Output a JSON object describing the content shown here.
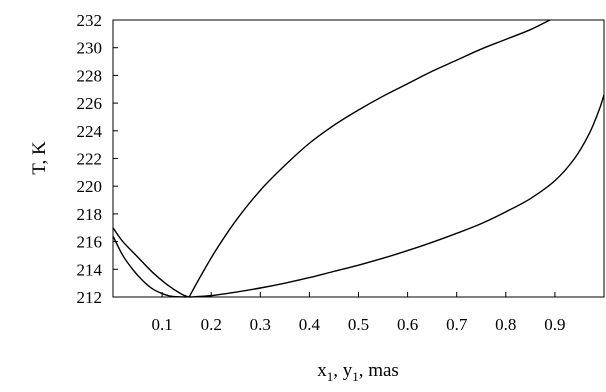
{
  "chart_data": {
    "type": "line",
    "title": "",
    "xlabel": {
      "main": "x",
      "sub": "1",
      "sep": ", ",
      "main2": "y",
      "sub2": "1",
      "tail": ", mas"
    },
    "ylabel": "T, K",
    "xlim": [
      0,
      1.0
    ],
    "ylim": [
      212,
      232
    ],
    "grid": false,
    "legend": "none",
    "x_tick_labels": [
      "0.1",
      "0.2",
      "0.3",
      "0.4",
      "0.5",
      "0.6",
      "0.7",
      "0.8",
      "0.9"
    ],
    "x_ticks": [
      0.1,
      0.2,
      0.3,
      0.4,
      0.5,
      0.6,
      0.7,
      0.8,
      0.9
    ],
    "y_tick_labels": [
      "212",
      "214",
      "216",
      "218",
      "220",
      "222",
      "224",
      "226",
      "228",
      "230",
      "232"
    ],
    "y_ticks": [
      212,
      214,
      216,
      218,
      220,
      222,
      224,
      226,
      228,
      230,
      232
    ],
    "series": [
      {
        "points": [
          [
            0.0,
            217.0
          ],
          [
            0.02,
            216.0
          ],
          [
            0.05,
            214.9
          ],
          [
            0.08,
            213.8
          ],
          [
            0.11,
            212.9
          ],
          [
            0.14,
            212.2
          ],
          [
            0.155,
            212.0
          ]
        ]
      },
      {
        "points": [
          [
            0.0,
            216.4
          ],
          [
            0.02,
            215.0
          ],
          [
            0.04,
            214.0
          ],
          [
            0.06,
            213.2
          ],
          [
            0.08,
            212.6
          ],
          [
            0.1,
            212.25
          ],
          [
            0.12,
            212.05
          ],
          [
            0.15,
            212.0
          ]
        ]
      },
      {
        "points": [
          [
            0.155,
            212.0
          ],
          [
            0.18,
            213.6
          ],
          [
            0.21,
            215.4
          ],
          [
            0.25,
            217.5
          ],
          [
            0.3,
            219.7
          ],
          [
            0.35,
            221.5
          ],
          [
            0.4,
            223.1
          ],
          [
            0.45,
            224.4
          ],
          [
            0.5,
            225.5
          ],
          [
            0.55,
            226.5
          ],
          [
            0.6,
            227.4
          ],
          [
            0.65,
            228.3
          ],
          [
            0.7,
            229.1
          ],
          [
            0.75,
            229.9
          ],
          [
            0.8,
            230.6
          ],
          [
            0.85,
            231.3
          ],
          [
            0.89,
            232.0
          ]
        ]
      },
      {
        "points": [
          [
            0.155,
            212.0
          ],
          [
            0.2,
            212.1
          ],
          [
            0.25,
            212.35
          ],
          [
            0.3,
            212.65
          ],
          [
            0.35,
            213.0
          ],
          [
            0.4,
            213.4
          ],
          [
            0.45,
            213.85
          ],
          [
            0.5,
            214.3
          ],
          [
            0.55,
            214.8
          ],
          [
            0.6,
            215.35
          ],
          [
            0.65,
            215.95
          ],
          [
            0.7,
            216.6
          ],
          [
            0.75,
            217.3
          ],
          [
            0.8,
            218.15
          ],
          [
            0.85,
            219.1
          ],
          [
            0.9,
            220.4
          ],
          [
            0.94,
            222.0
          ],
          [
            0.97,
            223.8
          ],
          [
            0.99,
            225.5
          ],
          [
            1.0,
            226.6
          ]
        ]
      }
    ]
  }
}
